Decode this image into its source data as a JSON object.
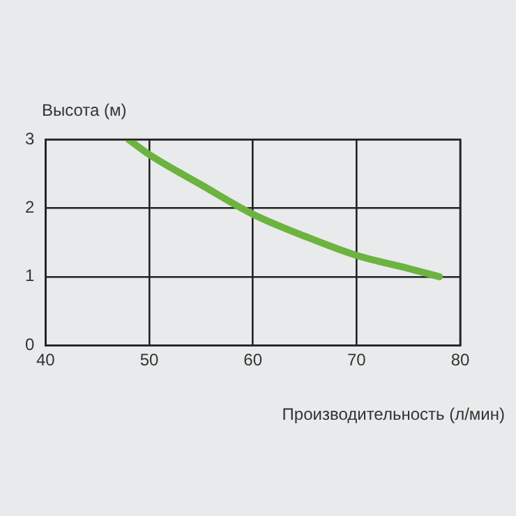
{
  "chart_data": {
    "type": "line",
    "xlabel": "Производительность (л/мин)",
    "ylabel": "Высота (м)",
    "x": [
      48,
      50,
      55,
      60,
      65,
      70,
      75,
      78
    ],
    "series": [
      {
        "color": "#6cb33f",
        "values": [
          3.0,
          2.78,
          2.34,
          1.91,
          1.59,
          1.31,
          1.12,
          1.0
        ]
      }
    ],
    "xlim": [
      40,
      80
    ],
    "xticks": [
      40,
      50,
      60,
      70,
      80
    ],
    "ylim": [
      0,
      3
    ],
    "yticks": [
      0,
      1,
      2,
      3
    ],
    "grid": true,
    "legend": false,
    "marker": "none",
    "line_style": "solid"
  }
}
